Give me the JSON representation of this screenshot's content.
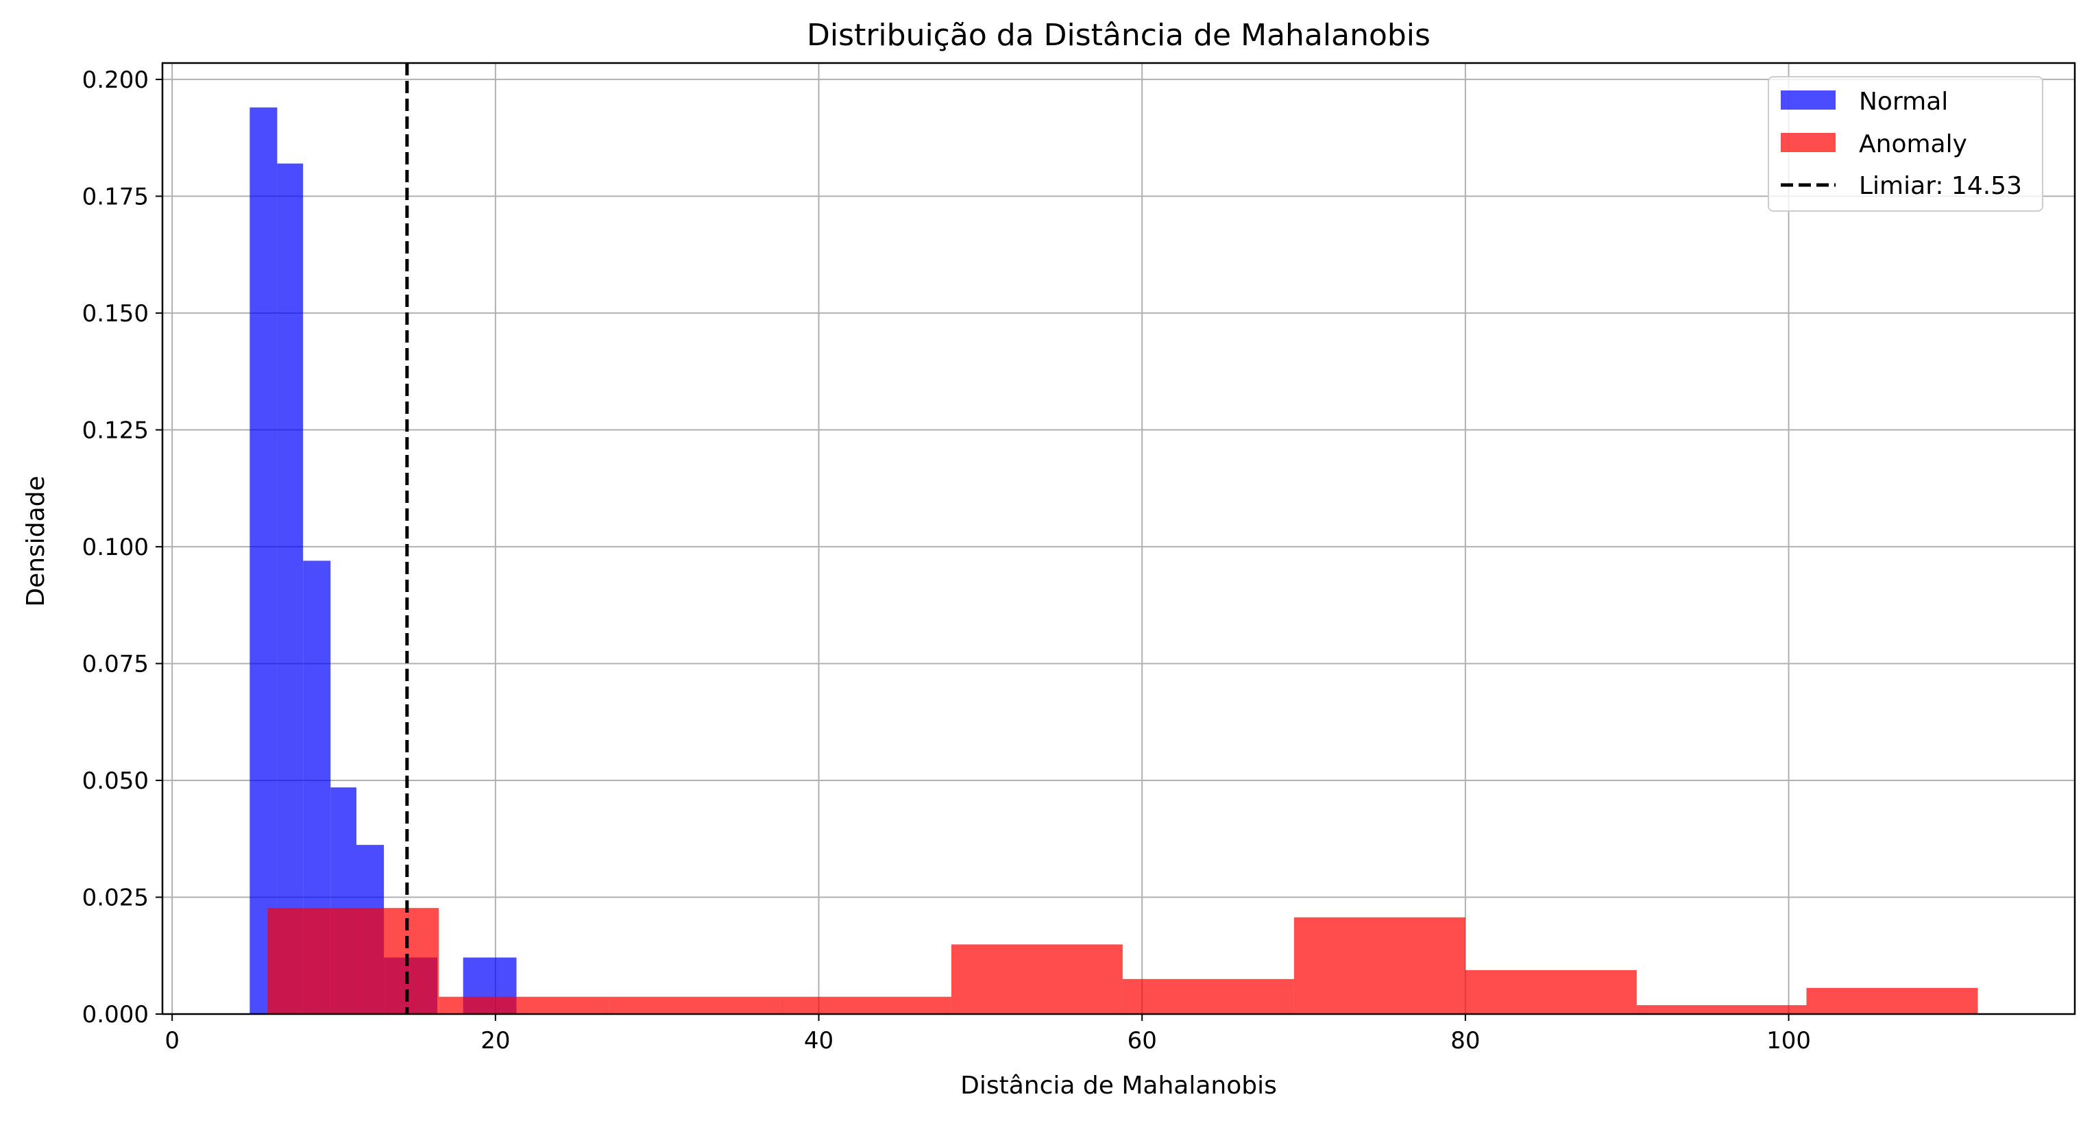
{
  "colors": {
    "normal": "#0000ff",
    "anomaly": "#ff0000",
    "threshold": "#000000",
    "grid": "#b0b0b0",
    "background": "#ffffff"
  },
  "chart_data": {
    "type": "histogram",
    "title": "Distribuição da Distância de Mahalanobis",
    "xlabel": "Distância de Mahalanobis",
    "ylabel": "Densidade",
    "xlim": [
      -0.6,
      117.7
    ],
    "ylim": [
      0,
      0.2035
    ],
    "x_ticks": [
      0,
      20,
      40,
      60,
      80,
      100
    ],
    "x_tick_labels": [
      "0",
      "20",
      "40",
      "60",
      "80",
      "100"
    ],
    "y_ticks": [
      0.0,
      0.025,
      0.05,
      0.075,
      0.1,
      0.125,
      0.15,
      0.175,
      0.2
    ],
    "y_tick_labels": [
      "0.000",
      "0.025",
      "0.050",
      "0.075",
      "0.100",
      "0.125",
      "0.150",
      "0.175",
      "0.200"
    ],
    "grid": true,
    "legend_position": "top-right",
    "bar_opacity": 0.7,
    "series": [
      {
        "name": "Normal",
        "color": "#0000ff",
        "bins": [
          {
            "x0": 4.8,
            "x1": 6.5,
            "value": 0.194
          },
          {
            "x0": 6.5,
            "x1": 8.1,
            "value": 0.182
          },
          {
            "x0": 8.1,
            "x1": 9.8,
            "value": 0.097
          },
          {
            "x0": 9.8,
            "x1": 11.4,
            "value": 0.0485
          },
          {
            "x0": 11.4,
            "x1": 13.1,
            "value": 0.0362
          },
          {
            "x0": 13.1,
            "x1": 14.7,
            "value": 0.0121
          },
          {
            "x0": 14.7,
            "x1": 16.4,
            "value": 0.0121
          },
          {
            "x0": 16.4,
            "x1": 18.0,
            "value": 0.0
          },
          {
            "x0": 18.0,
            "x1": 21.3,
            "value": 0.0121
          }
        ]
      },
      {
        "name": "Anomaly",
        "color": "#ff0000",
        "bins": [
          {
            "x0": 5.9,
            "x1": 16.5,
            "value": 0.0227
          },
          {
            "x0": 16.5,
            "x1": 27.0,
            "value": 0.0037
          },
          {
            "x0": 27.0,
            "x1": 37.6,
            "value": 0.0037
          },
          {
            "x0": 37.6,
            "x1": 48.2,
            "value": 0.0037
          },
          {
            "x0": 48.2,
            "x1": 58.8,
            "value": 0.0149
          },
          {
            "x0": 58.8,
            "x1": 69.4,
            "value": 0.0075
          },
          {
            "x0": 69.4,
            "x1": 80.0,
            "value": 0.0207
          },
          {
            "x0": 80.0,
            "x1": 90.6,
            "value": 0.0094
          },
          {
            "x0": 90.6,
            "x1": 101.1,
            "value": 0.0019
          },
          {
            "x0": 101.1,
            "x1": 111.7,
            "value": 0.0056
          }
        ]
      }
    ],
    "threshold": {
      "label": "Limiar: 14.53",
      "value": 14.53,
      "style": "dashed"
    }
  }
}
